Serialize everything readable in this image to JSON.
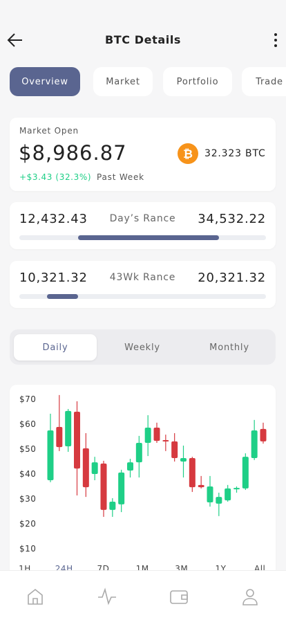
{
  "header": {
    "title": "BTC Details"
  },
  "tabs": {
    "items": [
      "Overview",
      "Market",
      "Portfolio",
      "Trade"
    ],
    "selected": 0
  },
  "market": {
    "label": "Market Open",
    "price": "$8,986.87",
    "btc": "32.323 BTC",
    "change": "+$3.43 (32.3%)",
    "period": "Past Week"
  },
  "ranges": [
    {
      "low": "12,432.43",
      "label": "Day’s Rance",
      "high": "34,532.22"
    },
    {
      "low": "10,321.32",
      "label": "43Wk Rance",
      "high": "20,321.32"
    }
  ],
  "periods": {
    "items": [
      "Daily",
      "Weekly",
      "Monthly"
    ],
    "selected": 0
  },
  "chart": {
    "type": "candlestick",
    "ylim": [
      10,
      70
    ],
    "yticks": [
      {
        "value": 70,
        "label": "$70"
      },
      {
        "value": 60,
        "label": "$60"
      },
      {
        "value": 50,
        "label": "$50"
      },
      {
        "value": 40,
        "label": "$40"
      },
      {
        "value": 30,
        "label": "$30"
      },
      {
        "value": 20,
        "label": "$20"
      },
      {
        "value": 10,
        "label": "$10"
      }
    ],
    "up_color": "#1fcf87",
    "down_color": "#d6393f",
    "open": [
      37.5,
      58.9,
      51.1,
      65,
      50.3,
      40,
      44.2,
      25.6,
      27.8,
      41.4,
      44.7,
      52.5,
      58.6,
      53.6,
      53.1,
      45,
      46.4,
      35.6,
      28.6,
      28.1,
      29.4,
      33.9,
      34.2,
      46.4,
      58.1
    ],
    "high": [
      64.2,
      71.7,
      66.1,
      69.2,
      56.4,
      46.9,
      45.3,
      30.3,
      41.7,
      46.1,
      55.3,
      63.6,
      60.6,
      55.8,
      56.4,
      51.4,
      46.9,
      39.2,
      39.2,
      32.5,
      35.6,
      35,
      48.3,
      61.7,
      60.6
    ],
    "low": [
      36.7,
      49.2,
      48.9,
      31.4,
      30.8,
      37.5,
      22.8,
      22.8,
      24.7,
      38.6,
      38.6,
      47.2,
      52.5,
      49.2,
      45,
      38.6,
      32.8,
      34.2,
      26.9,
      23.1,
      28.9,
      32.5,
      33.6,
      45.6,
      52.2
    ],
    "close": [
      57.5,
      50.8,
      65.3,
      42.2,
      34.7,
      44.7,
      25.6,
      28.9,
      40.6,
      44.7,
      52.5,
      58.6,
      53.3,
      53.1,
      46.4,
      46.4,
      34.7,
      34.7,
      35,
      30.8,
      34.2,
      34.4,
      46.9,
      57.5,
      53.1
    ],
    "timeframes": [
      "1H",
      "24H",
      "7D",
      "1M",
      "3M",
      "1Y",
      "All"
    ],
    "selected_timeframe": 1
  }
}
